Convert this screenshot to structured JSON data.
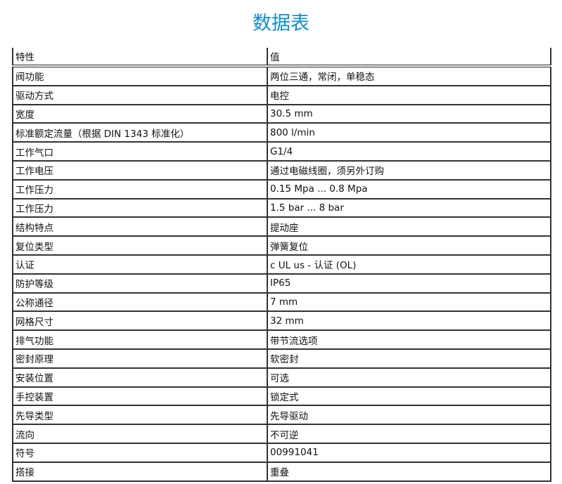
{
  "title": "数据表",
  "table": {
    "headers": [
      "特性",
      "值"
    ],
    "rows": [
      [
        "阀功能",
        "两位三通，常闭，单稳态"
      ],
      [
        "驱动方式",
        "电控"
      ],
      [
        "宽度",
        "30.5 mm"
      ],
      [
        "标准额定流量（根据 DIN 1343 标准化）",
        "800 l/min"
      ],
      [
        "工作气口",
        "G1/4"
      ],
      [
        "工作电压",
        "通过电磁线圈，须另外订购"
      ],
      [
        "工作压力",
        "0.15 Mpa ... 0.8 Mpa"
      ],
      [
        "工作压力",
        "1.5 bar ... 8 bar"
      ],
      [
        "结构特点",
        "提动座"
      ],
      [
        "复位类型",
        "弹簧复位"
      ],
      [
        "认证",
        "c UL us - 认证 (OL)"
      ],
      [
        "防护等级",
        "IP65"
      ],
      [
        "公称通径",
        "7 mm"
      ],
      [
        "网格尺寸",
        "32 mm"
      ],
      [
        "排气功能",
        "带节流选项"
      ],
      [
        "密封原理",
        "软密封"
      ],
      [
        "安装位置",
        "可选"
      ],
      [
        "手控装置",
        "锁定式"
      ],
      [
        "先导类型",
        "先导驱动"
      ],
      [
        "流向",
        "不可逆"
      ],
      [
        "符号",
        "00991041"
      ],
      [
        "搭接",
        "重叠"
      ]
    ]
  },
  "colors": {
    "title": "#0c8ed9",
    "border": "#333333"
  }
}
